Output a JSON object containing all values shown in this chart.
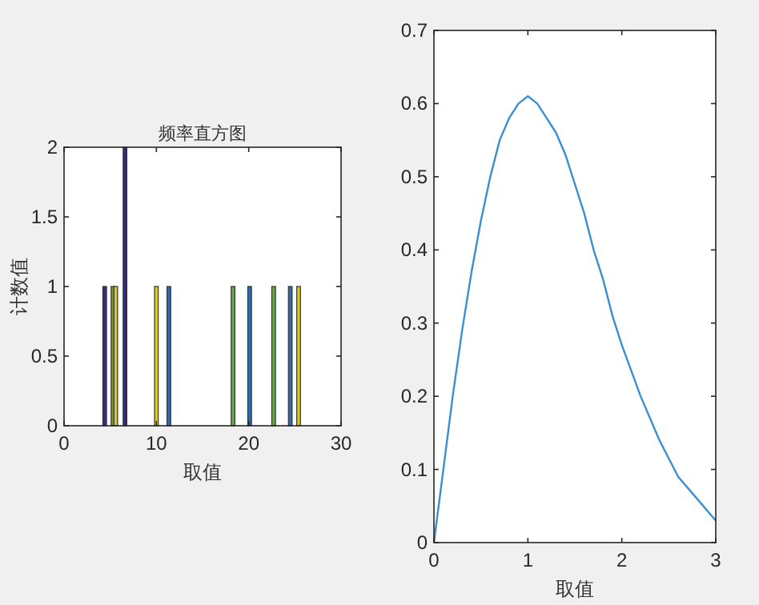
{
  "chart_data": [
    {
      "type": "bar",
      "title": "频率直方图",
      "xlabel": "取值",
      "ylabel": "计数值",
      "x": [
        4.4,
        5.3,
        5.6,
        6.6,
        10.0,
        11.35,
        18.3,
        20.1,
        22.7,
        24.5,
        25.4
      ],
      "values": [
        1,
        1,
        1,
        2,
        1,
        1,
        1,
        1,
        1,
        1,
        1
      ],
      "colors": [
        "#352a87",
        "#7a9a3a",
        "#d9c92a",
        "#352a87",
        "#d9c92a",
        "#2a6db5",
        "#6aa84f",
        "#2a6db5",
        "#6aa84f",
        "#2a6db5",
        "#d9c92a"
      ],
      "xlim": [
        0,
        30
      ],
      "xticks": [
        0,
        10,
        20,
        30
      ],
      "ylim": [
        0,
        2
      ],
      "yticks": [
        0,
        0.5,
        1,
        1.5,
        2
      ],
      "grid": false
    },
    {
      "type": "line",
      "xlabel": "取值",
      "x": [
        0,
        0.1,
        0.2,
        0.3,
        0.4,
        0.5,
        0.6,
        0.7,
        0.8,
        0.9,
        1.0,
        1.1,
        1.2,
        1.3,
        1.4,
        1.5,
        1.6,
        1.7,
        1.8,
        1.9,
        2.0,
        2.2,
        2.4,
        2.6,
        2.8,
        3.0
      ],
      "values": [
        0,
        0.1,
        0.2,
        0.29,
        0.37,
        0.44,
        0.5,
        0.55,
        0.58,
        0.6,
        0.61,
        0.6,
        0.58,
        0.56,
        0.53,
        0.49,
        0.45,
        0.4,
        0.36,
        0.31,
        0.27,
        0.2,
        0.14,
        0.09,
        0.06,
        0.03
      ],
      "color": "#3a8fd0",
      "xlim": [
        0,
        3
      ],
      "xticks": [
        0,
        1,
        2,
        3
      ],
      "ylim": [
        0,
        0.7
      ],
      "yticks": [
        0,
        0.1,
        0.2,
        0.3,
        0.4,
        0.5,
        0.6,
        0.7
      ],
      "grid": false
    }
  ]
}
